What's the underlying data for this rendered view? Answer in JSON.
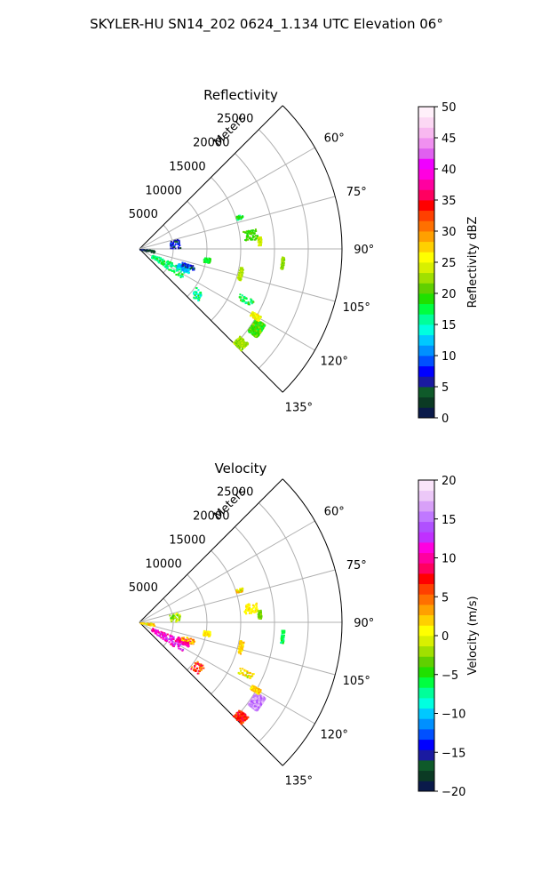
{
  "figure": {
    "suptitle": "SKYLER-HU  SN14_202  0624_1.134 UTC Elevation 06°"
  },
  "chart_data": [
    {
      "type": "scatter",
      "subtype": "polar-sector radar PPI",
      "title": "Reflectivity",
      "radial_label": "Meters",
      "radial_ticks": [
        5000,
        10000,
        15000,
        20000,
        25000
      ],
      "radial_tick_labels": [
        "5000",
        "10000",
        "15000",
        "20000",
        "25000"
      ],
      "radial_range": [
        0,
        30000
      ],
      "azimuth_range_deg": [
        45,
        135
      ],
      "azimuth_gridlines_deg": [
        45,
        60,
        75,
        90,
        105,
        120,
        135
      ],
      "azimuth_tick_labels": [
        "60°",
        "75°",
        "90°",
        "105°",
        "120°",
        "135°"
      ],
      "grid": true,
      "colorbar": {
        "label": "Reflectivity dBZ",
        "range": [
          0,
          50
        ],
        "ticks": [
          0,
          5,
          10,
          15,
          20,
          25,
          30,
          35,
          40,
          45,
          50
        ],
        "colors": [
          "#0a1a4a",
          "#0b3a24",
          "#0f5a2a",
          "#1a1aa0",
          "#0000ff",
          "#0050ff",
          "#0090ff",
          "#00c8ff",
          "#00ffe0",
          "#00ff9a",
          "#00ff40",
          "#20e000",
          "#60d000",
          "#a0e000",
          "#d8f000",
          "#ffff00",
          "#ffd000",
          "#ffa000",
          "#ff7000",
          "#ff4000",
          "#ff0000",
          "#ff0060",
          "#ff00a0",
          "#ff00e0",
          "#f000ff",
          "#e060f0",
          "#f090f0",
          "#f8b8f0",
          "#fcd8f4",
          "#fff0fa"
        ]
      },
      "clusters": [
        {
          "az": [
            121,
            127
          ],
          "r": [
            20000,
            21600
          ],
          "value": 20,
          "density": "dense"
        },
        {
          "az": [
            119,
            121
          ],
          "r": [
            19000,
            20500
          ],
          "value": 26,
          "density": "medium"
        },
        {
          "az": [
            114,
            117
          ],
          "r": [
            16200,
            18500
          ],
          "value": 18,
          "density": "sparse"
        },
        {
          "az": [
            131,
            135
          ],
          "r": [
            19500,
            21200
          ],
          "value": 22,
          "density": "medium"
        },
        {
          "az": [
            93,
            98
          ],
          "r": [
            21000,
            21400
          ],
          "value": 22,
          "density": "line"
        },
        {
          "az": [
            100,
            107
          ],
          "r": [
            15000,
            15600
          ],
          "value": 23,
          "density": "line"
        },
        {
          "az": [
            80,
            85
          ],
          "r": [
            15500,
            17500
          ],
          "value": 20,
          "density": "line"
        },
        {
          "az": [
            84,
            88
          ],
          "r": [
            17500,
            18000
          ],
          "value": 24,
          "density": "line"
        },
        {
          "az": [
            71,
            73
          ],
          "r": [
            15000,
            16000
          ],
          "value": 18,
          "density": "sparse"
        },
        {
          "az": [
            97,
            101
          ],
          "r": [
            9500,
            10500
          ],
          "value": 18,
          "density": "line"
        },
        {
          "az": [
            112,
            125
          ],
          "r": [
            2000,
            7500
          ],
          "value": 17,
          "density": "medium"
        },
        {
          "az": [
            110,
            116
          ],
          "r": [
            6000,
            8000
          ],
          "value": 12,
          "density": "medium"
        },
        {
          "az": [
            107,
            112
          ],
          "r": [
            6500,
            8500
          ],
          "value": 7,
          "density": "sparse"
        },
        {
          "az": [
            124,
            132
          ],
          "r": [
            10000,
            11500
          ],
          "value": 16,
          "density": "sparse"
        },
        {
          "az": [
            75,
            88
          ],
          "r": [
            4500,
            6000
          ],
          "value": 6,
          "density": "sparse"
        },
        {
          "az": [
            92,
            103
          ],
          "r": [
            0,
            2200
          ],
          "value": 4,
          "density": "sparse"
        }
      ]
    },
    {
      "type": "scatter",
      "subtype": "polar-sector radar PPI",
      "title": "Velocity",
      "radial_label": "Meters",
      "radial_ticks": [
        5000,
        10000,
        15000,
        20000,
        25000
      ],
      "radial_tick_labels": [
        "5000",
        "10000",
        "15000",
        "20000",
        "25000"
      ],
      "radial_range": [
        0,
        30000
      ],
      "azimuth_range_deg": [
        45,
        135
      ],
      "azimuth_gridlines_deg": [
        45,
        60,
        75,
        90,
        105,
        120,
        135
      ],
      "azimuth_tick_labels": [
        "60°",
        "75°",
        "90°",
        "105°",
        "120°",
        "135°"
      ],
      "grid": true,
      "colorbar": {
        "label": "Velocity (m/s)",
        "range": [
          -20,
          20
        ],
        "ticks": [
          -20,
          -15,
          -10,
          -5,
          0,
          5,
          10,
          15,
          20
        ],
        "tick_labels": [
          "−20",
          "−15",
          "−10",
          "−5",
          "0",
          "5",
          "10",
          "15",
          "20"
        ],
        "colors": [
          "#0a1a4a",
          "#0b3a24",
          "#0f5a2a",
          "#1a1aa0",
          "#0000ff",
          "#0050ff",
          "#0090ff",
          "#00c8ff",
          "#00ffe0",
          "#00ff9a",
          "#00ff40",
          "#20e000",
          "#60d000",
          "#a0e000",
          "#d8f000",
          "#ffff00",
          "#ffd000",
          "#ffa000",
          "#ff7000",
          "#ff4000",
          "#ff0000",
          "#ff0060",
          "#ff00a0",
          "#ff00e0",
          "#c030ff",
          "#b050ff",
          "#c078ff",
          "#d8a0f8",
          "#ecc8f8",
          "#fae4fa"
        ]
      },
      "clusters": [
        {
          "az": [
            121,
            127
          ],
          "r": [
            20000,
            21600
          ],
          "value": 16,
          "density": "dense"
        },
        {
          "az": [
            119,
            121
          ],
          "r": [
            19000,
            20500
          ],
          "value": 2,
          "density": "medium"
        },
        {
          "az": [
            114,
            117
          ],
          "r": [
            16200,
            18500
          ],
          "value": 1,
          "density": "sparse"
        },
        {
          "az": [
            131,
            135
          ],
          "r": [
            19500,
            21200
          ],
          "value": 7,
          "density": "medium"
        },
        {
          "az": [
            93,
            98
          ],
          "r": [
            21000,
            21400
          ],
          "value": -6,
          "density": "line"
        },
        {
          "az": [
            100,
            107
          ],
          "r": [
            15000,
            15600
          ],
          "value": 2,
          "density": "line"
        },
        {
          "az": [
            80,
            85
          ],
          "r": [
            15500,
            17500
          ],
          "value": 1,
          "density": "line"
        },
        {
          "az": [
            84,
            88
          ],
          "r": [
            17500,
            18000
          ],
          "value": -3,
          "density": "line"
        },
        {
          "az": [
            71,
            73
          ],
          "r": [
            15000,
            16000
          ],
          "value": 1,
          "density": "sparse"
        },
        {
          "az": [
            97,
            101
          ],
          "r": [
            9500,
            10500
          ],
          "value": 1,
          "density": "line"
        },
        {
          "az": [
            112,
            125
          ],
          "r": [
            2000,
            7500
          ],
          "value": 11,
          "density": "medium"
        },
        {
          "az": [
            110,
            116
          ],
          "r": [
            6000,
            8000
          ],
          "value": 10,
          "density": "medium"
        },
        {
          "az": [
            107,
            112
          ],
          "r": [
            6500,
            8500
          ],
          "value": 3,
          "density": "sparse"
        },
        {
          "az": [
            124,
            132
          ],
          "r": [
            10000,
            11500
          ],
          "value": 6,
          "density": "sparse"
        },
        {
          "az": [
            75,
            88
          ],
          "r": [
            4500,
            6000
          ],
          "value": -2,
          "density": "sparse"
        },
        {
          "az": [
            92,
            103
          ],
          "r": [
            0,
            2200
          ],
          "value": 1,
          "density": "sparse"
        }
      ]
    }
  ]
}
